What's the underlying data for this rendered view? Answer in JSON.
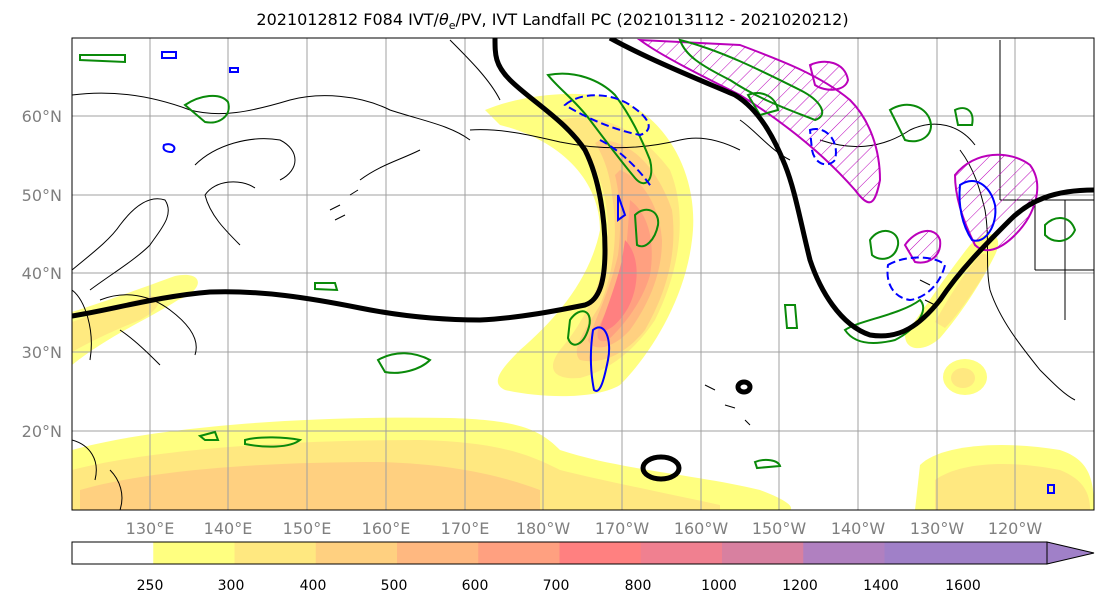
{
  "title": {
    "prefix": "2021012812 F084 IVT/",
    "theta": "θ",
    "sub": "e",
    "suffix": "/PV, IVT Landfall PC (2021013112 - 2021020212)"
  },
  "map": {
    "lon_labels": [
      "130°E",
      "140°E",
      "150°E",
      "160°E",
      "170°E",
      "180°W",
      "170°W",
      "160°W",
      "150°W",
      "140°W",
      "130°W",
      "120°W"
    ],
    "lat_labels": [
      "60°N",
      "50°N",
      "40°N",
      "30°N",
      "20°N"
    ]
  },
  "colorbar": {
    "colors": [
      "#ffffff",
      "#ffff80",
      "#ffe880",
      "#ffd080",
      "#ffb880",
      "#ffa080",
      "#ff8080",
      "#f08090",
      "#d880a0",
      "#b080c0",
      "#a080c8"
    ],
    "labels": [
      "250",
      "300",
      "400",
      "500",
      "600",
      "700",
      "800",
      "1000",
      "1200",
      "1400",
      "1600"
    ]
  },
  "legend_colors": {
    "ivt_shading": "#ffcc66",
    "theta_e": "#000000",
    "pv_positive": "#0a8a0a",
    "pv_negative": "#0000ff",
    "landfall_pc": "#bb00bb"
  }
}
